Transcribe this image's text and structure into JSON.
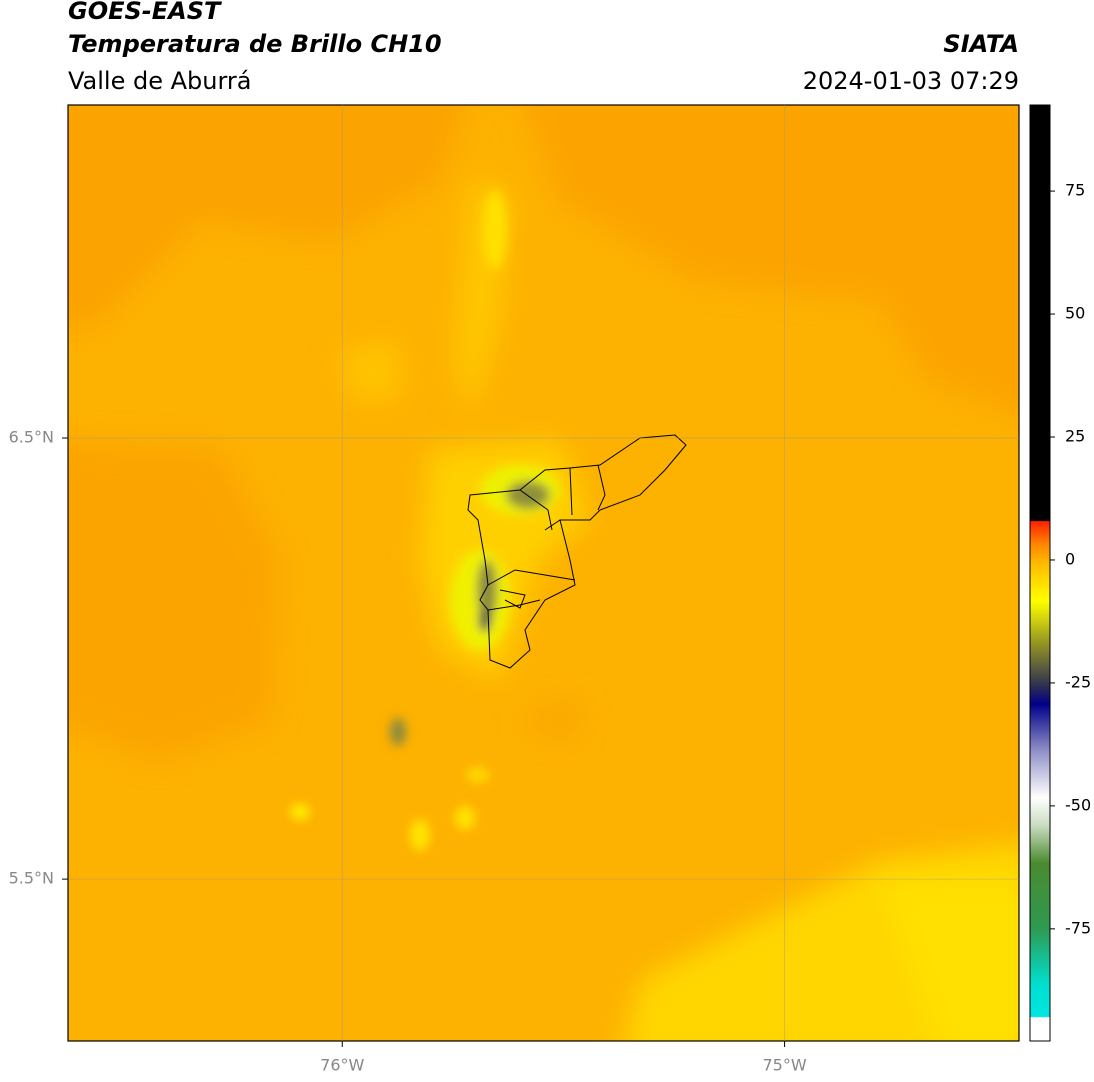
{
  "header": {
    "title": "GOES-EAST",
    "subtitle": "Temperatura de Brillo CH10",
    "region": "Valle de Aburrá",
    "source": "SIATA",
    "timestamp": "2024-01-03 07:29"
  },
  "map": {
    "lon_range": [
      -76.62,
      -74.47
    ],
    "lat_range": [
      5.133,
      7.255
    ],
    "lon_ticks": [
      {
        "value": -76,
        "label": "76°W"
      },
      {
        "value": -75,
        "label": "75°W"
      }
    ],
    "lat_ticks": [
      {
        "value": 6.5,
        "label": "6.5°N"
      },
      {
        "value": 5.5,
        "label": "5.5°N"
      }
    ]
  },
  "colorbar": {
    "range": [
      -97.8,
      92.5
    ],
    "ticks": [
      75,
      50,
      25,
      0,
      -25,
      -50,
      -75
    ]
  }
}
